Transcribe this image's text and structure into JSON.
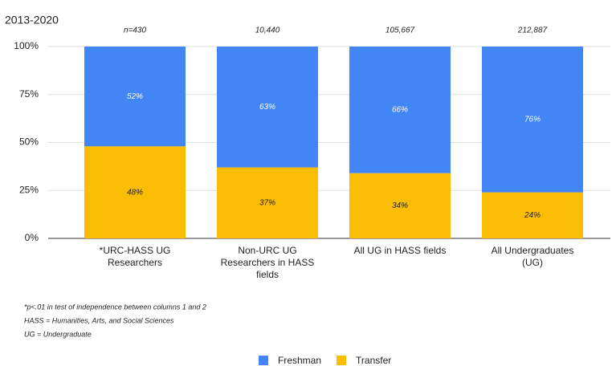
{
  "chart_data": {
    "type": "bar",
    "stacked": true,
    "subtitle": "2013-2020",
    "categories": [
      "*URC-HASS UG Researchers",
      "Non-URC UG Researchers in HASS fields",
      "All UG in HASS fields",
      "All Undergraduates (UG)"
    ],
    "annotations": [
      "n=430",
      "10,440",
      "105,667",
      "212,887"
    ],
    "series": [
      {
        "name": "Freshman",
        "color": "#4285f4",
        "values": [
          52,
          63,
          66,
          76
        ],
        "value_labels": [
          "52%",
          "63%",
          "66%",
          "76%"
        ]
      },
      {
        "name": "Transfer",
        "color": "#fbbc04",
        "values": [
          48,
          37,
          34,
          24
        ],
        "value_labels": [
          "48%",
          "37%",
          "34%",
          "24%"
        ]
      }
    ],
    "ylim": [
      0,
      100
    ],
    "yticks": [
      {
        "value": 0,
        "label": "0%"
      },
      {
        "value": 25,
        "label": "25%"
      },
      {
        "value": 50,
        "label": "50%"
      },
      {
        "value": 75,
        "label": "75%"
      },
      {
        "value": 100,
        "label": "100%"
      }
    ],
    "grid": true,
    "notes": [
      "*p<.01 in test of independence between columns 1 and 2",
      "HASS = Humanities, Arts, and Social Sciences",
      "UG = Undergraduate"
    ]
  }
}
